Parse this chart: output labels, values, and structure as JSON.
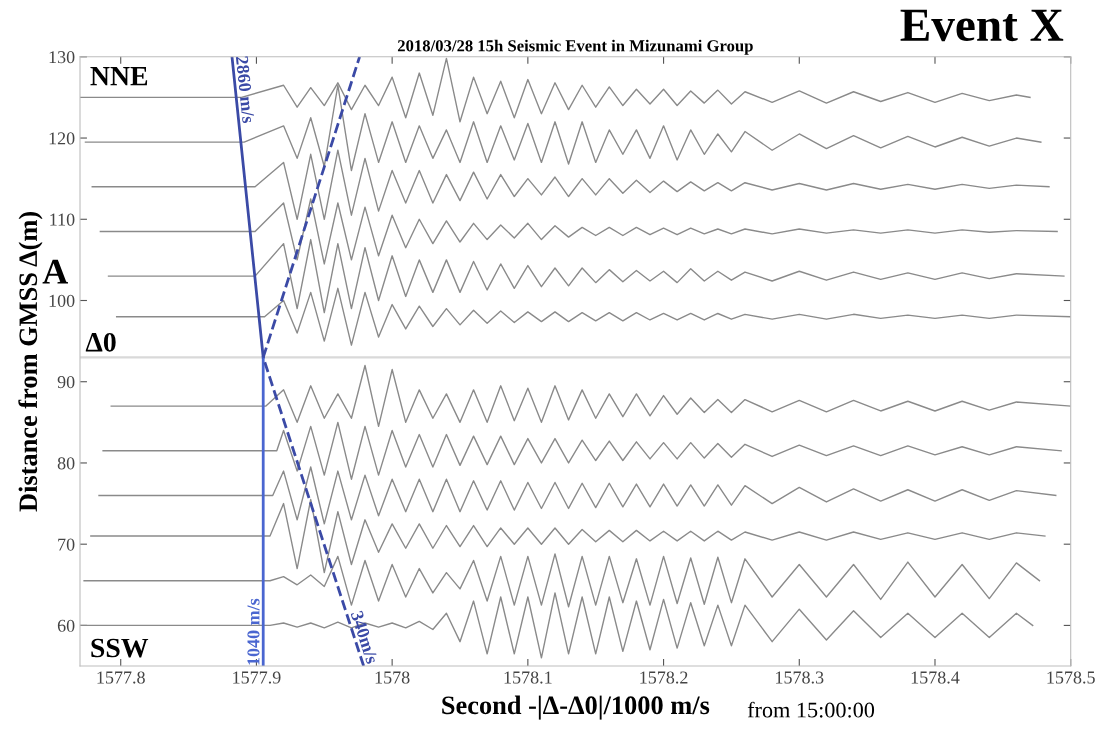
{
  "chart_data": {
    "type": "line",
    "title": "2018/03/28 15h Seismic Event in Mizunami Group",
    "xlabel": "Second -|Δ-Δ0|/1000 m/s",
    "ylabel": "Distance from GMSS Δ(m)",
    "annotations": [
      "NNE",
      "SSW",
      "A",
      "Event X",
      "from 15:00:00"
    ],
    "xlim": [
      1577.77,
      1578.5
    ],
    "xticks": [
      1577.8,
      1577.9,
      1578,
      1578.1,
      1578.2,
      1578.3,
      1578.4,
      1578.5
    ],
    "ylim": [
      55,
      130
    ],
    "yticks": [
      60,
      70,
      80,
      90,
      100,
      110,
      120,
      130
    ],
    "grid": false,
    "legend": false,
    "marker": "none",
    "ref_lines": [
      {
        "axis": "y",
        "value": 93,
        "label": "Δ0",
        "color": "#d9d9d9",
        "line_style": "solid"
      }
    ],
    "series": [
      {
        "color": "#8a8a8a",
        "line_style": "solid",
        "x": [
          1577.77,
          1577.889,
          1577.92,
          1577.93,
          1577.94,
          1577.95,
          1577.96,
          1577.97,
          1577.98,
          1577.99,
          1578.0,
          1578.01,
          1578.02,
          1578.03,
          1578.04,
          1578.05,
          1578.06,
          1578.07,
          1578.08,
          1578.09,
          1578.1,
          1578.11,
          1578.12,
          1578.13,
          1578.14,
          1578.15,
          1578.16,
          1578.17,
          1578.18,
          1578.19,
          1578.2,
          1578.21,
          1578.22,
          1578.23,
          1578.24,
          1578.25,
          1578.26,
          1578.28,
          1578.3,
          1578.32,
          1578.34,
          1578.36,
          1578.38,
          1578.4,
          1578.42,
          1578.44,
          1578.46,
          1578.47
        ],
        "values": [
          125,
          125,
          126.5,
          123.8,
          126.2,
          124,
          126.8,
          123.5,
          126.5,
          124,
          127.5,
          122.5,
          128,
          122.8,
          129.8,
          122,
          127.5,
          123,
          127,
          122.5,
          127.2,
          123,
          126.8,
          123.5,
          126.5,
          123.8,
          126.3,
          124,
          126,
          124.2,
          126,
          124,
          125.8,
          124.3,
          125.9,
          124.2,
          125.7,
          124.4,
          125.8,
          124.3,
          125.7,
          124.5,
          125.6,
          124.4,
          125.5,
          124.6,
          125.3,
          125
        ]
      },
      {
        "color": "#8a8a8a",
        "line_style": "solid",
        "x": [
          1577.774,
          1577.891,
          1577.92,
          1577.93,
          1577.94,
          1577.95,
          1577.96,
          1577.97,
          1577.98,
          1577.99,
          1578.0,
          1578.01,
          1578.02,
          1578.03,
          1578.04,
          1578.05,
          1578.06,
          1578.07,
          1578.08,
          1578.09,
          1578.1,
          1578.11,
          1578.12,
          1578.13,
          1578.14,
          1578.15,
          1578.16,
          1578.17,
          1578.18,
          1578.19,
          1578.2,
          1578.21,
          1578.22,
          1578.23,
          1578.24,
          1578.25,
          1578.26,
          1578.28,
          1578.3,
          1578.32,
          1578.34,
          1578.36,
          1578.38,
          1578.4,
          1578.42,
          1578.44,
          1578.46,
          1578.478
        ],
        "values": [
          119.5,
          119.5,
          121.5,
          117.5,
          122.5,
          116.5,
          126.5,
          116,
          123,
          117,
          122,
          117,
          121.5,
          117.5,
          121,
          117,
          122,
          117,
          121.5,
          117.3,
          121.8,
          117,
          122,
          116.8,
          122,
          117,
          121,
          118,
          121,
          117.5,
          121.5,
          117.3,
          121,
          118,
          120.5,
          118.3,
          120.8,
          118.5,
          120.5,
          118.7,
          120.3,
          118.8,
          120.2,
          118.9,
          120.1,
          119,
          120,
          119.5
        ]
      },
      {
        "color": "#8a8a8a",
        "line_style": "solid",
        "x": [
          1577.779,
          1577.899,
          1577.92,
          1577.93,
          1577.94,
          1577.95,
          1577.96,
          1577.97,
          1577.98,
          1577.99,
          1578.0,
          1578.01,
          1578.02,
          1578.03,
          1578.04,
          1578.05,
          1578.06,
          1578.07,
          1578.08,
          1578.09,
          1578.1,
          1578.11,
          1578.12,
          1578.13,
          1578.14,
          1578.15,
          1578.16,
          1578.17,
          1578.18,
          1578.19,
          1578.2,
          1578.21,
          1578.22,
          1578.23,
          1578.24,
          1578.25,
          1578.26,
          1578.28,
          1578.3,
          1578.32,
          1578.34,
          1578.36,
          1578.38,
          1578.4,
          1578.42,
          1578.44,
          1578.46,
          1578.484
        ],
        "values": [
          114,
          114,
          117,
          110,
          118,
          110,
          118.5,
          110.5,
          117.5,
          111,
          116,
          112,
          116,
          112,
          115.5,
          112.3,
          115.8,
          112.5,
          115.5,
          112.8,
          115,
          113,
          115.2,
          112.8,
          115,
          113,
          115,
          113.2,
          114.8,
          113.3,
          114.7,
          113.4,
          114.6,
          113.5,
          114.5,
          113.5,
          114.5,
          113.6,
          114.4,
          113.6,
          114.4,
          113.7,
          114.3,
          113.7,
          114.3,
          113.8,
          114.2,
          114
        ]
      },
      {
        "color": "#8a8a8a",
        "line_style": "solid",
        "x": [
          1577.785,
          1577.899,
          1577.92,
          1577.93,
          1577.94,
          1577.95,
          1577.96,
          1577.97,
          1577.98,
          1577.99,
          1578.0,
          1578.01,
          1578.02,
          1578.03,
          1578.04,
          1578.05,
          1578.06,
          1578.07,
          1578.08,
          1578.09,
          1578.1,
          1578.11,
          1578.12,
          1578.13,
          1578.14,
          1578.15,
          1578.16,
          1578.17,
          1578.18,
          1578.19,
          1578.2,
          1578.21,
          1578.22,
          1578.23,
          1578.24,
          1578.25,
          1578.26,
          1578.28,
          1578.3,
          1578.32,
          1578.34,
          1578.36,
          1578.38,
          1578.4,
          1578.42,
          1578.44,
          1578.46,
          1578.49
        ],
        "values": [
          108.5,
          108.5,
          112,
          105,
          112.5,
          104.5,
          112,
          105,
          111.5,
          105.5,
          110.5,
          106.5,
          110,
          107,
          109.8,
          107.2,
          109.5,
          107.5,
          109.3,
          107.7,
          109.5,
          107.5,
          109.2,
          107.8,
          109,
          108,
          109,
          108,
          109,
          108.1,
          108.9,
          108.1,
          108.9,
          108.2,
          108.8,
          108.2,
          108.8,
          108.2,
          108.8,
          108.3,
          108.7,
          108.3,
          108.7,
          108.3,
          108.7,
          108.4,
          108.6,
          108.5
        ]
      },
      {
        "color": "#8a8a8a",
        "line_style": "solid",
        "x": [
          1577.791,
          1577.899,
          1577.92,
          1577.93,
          1577.94,
          1577.95,
          1577.96,
          1577.97,
          1577.98,
          1577.99,
          1578.0,
          1578.01,
          1578.02,
          1578.03,
          1578.04,
          1578.05,
          1578.06,
          1578.07,
          1578.08,
          1578.09,
          1578.1,
          1578.11,
          1578.12,
          1578.13,
          1578.14,
          1578.15,
          1578.16,
          1578.17,
          1578.18,
          1578.19,
          1578.2,
          1578.21,
          1578.22,
          1578.23,
          1578.24,
          1578.25,
          1578.26,
          1578.28,
          1578.3,
          1578.32,
          1578.34,
          1578.36,
          1578.38,
          1578.4,
          1578.42,
          1578.44,
          1578.46,
          1578.495
        ],
        "values": [
          103,
          103,
          107,
          99,
          107.5,
          98.5,
          107,
          99,
          106.5,
          100,
          105.5,
          100.5,
          105,
          101,
          105,
          101,
          104.8,
          101.3,
          104.5,
          101.5,
          104.3,
          101.7,
          104,
          101.8,
          104,
          102.2,
          103.8,
          102.3,
          103.7,
          102.4,
          103.6,
          102.2,
          103.9,
          102.4,
          103.6,
          102.5,
          103.5,
          102.4,
          103.6,
          102.5,
          103.5,
          102.6,
          103.4,
          102.6,
          103.4,
          102.7,
          103.3,
          103
        ]
      },
      {
        "color": "#8a8a8a",
        "line_style": "solid",
        "x": [
          1577.797,
          1577.906,
          1577.92,
          1577.93,
          1577.94,
          1577.95,
          1577.96,
          1577.97,
          1577.98,
          1577.99,
          1578.0,
          1578.01,
          1578.02,
          1578.03,
          1578.04,
          1578.05,
          1578.06,
          1578.07,
          1578.08,
          1578.09,
          1578.1,
          1578.11,
          1578.12,
          1578.13,
          1578.14,
          1578.15,
          1578.16,
          1578.17,
          1578.18,
          1578.19,
          1578.2,
          1578.21,
          1578.22,
          1578.23,
          1578.24,
          1578.25,
          1578.26,
          1578.28,
          1578.3,
          1578.32,
          1578.34,
          1578.36,
          1578.38,
          1578.4,
          1578.42,
          1578.44,
          1578.46,
          1578.5
        ],
        "values": [
          98,
          98,
          100,
          96,
          101,
          95,
          101.5,
          94.5,
          101,
          95.5,
          99.5,
          96.5,
          99.3,
          96.8,
          99,
          97,
          98.8,
          97.2,
          98.7,
          97.3,
          98.6,
          97.4,
          98.6,
          97.4,
          98.5,
          97.5,
          98.5,
          97.5,
          98.5,
          97.6,
          98.4,
          97.6,
          98.4,
          97.6,
          98.4,
          97.7,
          98.3,
          97.7,
          98.3,
          97.7,
          98.3,
          97.8,
          98.2,
          97.8,
          98.2,
          97.8,
          98.2,
          98
        ]
      },
      {
        "color": "#8a8a8a",
        "line_style": "solid",
        "x": [
          1577.793,
          1577.907,
          1577.92,
          1577.93,
          1577.94,
          1577.95,
          1577.96,
          1577.97,
          1577.98,
          1577.99,
          1578.0,
          1578.01,
          1578.02,
          1578.03,
          1578.04,
          1578.05,
          1578.06,
          1578.07,
          1578.08,
          1578.09,
          1578.1,
          1578.11,
          1578.12,
          1578.13,
          1578.14,
          1578.15,
          1578.16,
          1578.17,
          1578.18,
          1578.19,
          1578.2,
          1578.21,
          1578.22,
          1578.23,
          1578.24,
          1578.25,
          1578.26,
          1578.28,
          1578.3,
          1578.32,
          1578.34,
          1578.36,
          1578.38,
          1578.4,
          1578.42,
          1578.44,
          1578.46,
          1578.5
        ],
        "values": [
          87,
          87,
          89,
          85,
          89.5,
          85.5,
          88.5,
          85.5,
          92,
          84.5,
          91.5,
          85,
          89,
          85.5,
          88.5,
          85,
          89,
          85,
          89.5,
          85.2,
          89.2,
          85,
          89.5,
          85.3,
          89,
          85.5,
          88.5,
          85.7,
          88.5,
          85.8,
          88.3,
          86,
          88,
          86.2,
          87.8,
          86.2,
          87.8,
          86.3,
          87.7,
          86.3,
          87.7,
          86.4,
          87.6,
          86.4,
          87.6,
          86.5,
          87.5,
          87
        ]
      },
      {
        "color": "#8a8a8a",
        "line_style": "solid",
        "x": [
          1577.787,
          1577.915,
          1577.92,
          1577.93,
          1577.94,
          1577.95,
          1577.96,
          1577.97,
          1577.98,
          1577.99,
          1578.0,
          1578.01,
          1578.02,
          1578.03,
          1578.04,
          1578.05,
          1578.06,
          1578.07,
          1578.08,
          1578.09,
          1578.1,
          1578.11,
          1578.12,
          1578.13,
          1578.14,
          1578.15,
          1578.16,
          1578.17,
          1578.18,
          1578.19,
          1578.2,
          1578.21,
          1578.22,
          1578.23,
          1578.24,
          1578.25,
          1578.26,
          1578.28,
          1578.3,
          1578.32,
          1578.34,
          1578.36,
          1578.38,
          1578.4,
          1578.42,
          1578.44,
          1578.46,
          1578.493
        ],
        "values": [
          81.5,
          81.5,
          84,
          79,
          84.5,
          78.5,
          85,
          78,
          84.5,
          78.5,
          84,
          79.5,
          83.5,
          79.5,
          83.5,
          79.7,
          83.3,
          79.8,
          83.3,
          79.8,
          83,
          80,
          83,
          80,
          82.8,
          80.3,
          82.7,
          80.3,
          82.6,
          80.5,
          82.5,
          80.5,
          82.5,
          80.6,
          82.4,
          80.7,
          82.3,
          80.8,
          82.2,
          80.9,
          82.1,
          80.9,
          82.1,
          81,
          82,
          81,
          82,
          81.5
        ]
      },
      {
        "color": "#8a8a8a",
        "line_style": "solid",
        "x": [
          1577.784,
          1577.912,
          1577.92,
          1577.93,
          1577.94,
          1577.95,
          1577.96,
          1577.97,
          1577.98,
          1577.99,
          1578.0,
          1578.01,
          1578.02,
          1578.03,
          1578.04,
          1578.05,
          1578.06,
          1578.07,
          1578.08,
          1578.09,
          1578.1,
          1578.11,
          1578.12,
          1578.13,
          1578.14,
          1578.15,
          1578.16,
          1578.17,
          1578.18,
          1578.19,
          1578.2,
          1578.21,
          1578.22,
          1578.23,
          1578.24,
          1578.25,
          1578.26,
          1578.28,
          1578.3,
          1578.32,
          1578.34,
          1578.36,
          1578.38,
          1578.4,
          1578.42,
          1578.44,
          1578.46,
          1578.489
        ],
        "values": [
          76,
          76,
          79,
          73,
          79.5,
          72.5,
          79,
          73,
          78.5,
          73.5,
          78,
          74,
          78,
          74,
          78,
          74,
          77.8,
          74.2,
          77.8,
          74.2,
          77.6,
          74.4,
          77.6,
          74.4,
          77.5,
          74.5,
          77.5,
          74.6,
          77.4,
          74.6,
          77.4,
          74.7,
          77.3,
          74.7,
          77.3,
          74.8,
          77.2,
          75,
          77,
          75.2,
          76.8,
          75.3,
          76.7,
          75.3,
          76.7,
          75.4,
          76.6,
          76
        ]
      },
      {
        "color": "#8a8a8a",
        "line_style": "solid",
        "x": [
          1577.778,
          1577.91,
          1577.92,
          1577.93,
          1577.94,
          1577.95,
          1577.96,
          1577.97,
          1577.98,
          1577.99,
          1578.0,
          1578.01,
          1578.02,
          1578.03,
          1578.04,
          1578.05,
          1578.06,
          1578.07,
          1578.08,
          1578.09,
          1578.1,
          1578.11,
          1578.12,
          1578.13,
          1578.14,
          1578.15,
          1578.16,
          1578.17,
          1578.18,
          1578.19,
          1578.2,
          1578.21,
          1578.22,
          1578.23,
          1578.24,
          1578.25,
          1578.26,
          1578.28,
          1578.3,
          1578.32,
          1578.34,
          1578.36,
          1578.38,
          1578.4,
          1578.42,
          1578.44,
          1578.46,
          1578.481
        ],
        "values": [
          71,
          71,
          75,
          67,
          75.5,
          66.5,
          74,
          67.5,
          73,
          69,
          72.5,
          69.5,
          72.5,
          69.5,
          72.3,
          69.7,
          72.3,
          69.7,
          72,
          70,
          72,
          70,
          72,
          70,
          71.8,
          70.3,
          71.7,
          70.3,
          71.7,
          70.4,
          71.6,
          70.4,
          71.6,
          70.4,
          71.6,
          70.5,
          71.5,
          70.5,
          71.5,
          70.5,
          71.5,
          70.6,
          71.4,
          70.6,
          71.4,
          70.6,
          71.4,
          71
        ]
      },
      {
        "color": "#8a8a8a",
        "line_style": "solid",
        "x": [
          1577.773,
          1577.91,
          1577.92,
          1577.93,
          1577.94,
          1577.95,
          1577.96,
          1577.97,
          1577.98,
          1577.99,
          1578.0,
          1578.01,
          1578.02,
          1578.03,
          1578.04,
          1578.05,
          1578.06,
          1578.07,
          1578.08,
          1578.09,
          1578.1,
          1578.11,
          1578.12,
          1578.13,
          1578.14,
          1578.15,
          1578.16,
          1578.17,
          1578.18,
          1578.19,
          1578.2,
          1578.21,
          1578.22,
          1578.23,
          1578.24,
          1578.25,
          1578.26,
          1578.28,
          1578.3,
          1578.32,
          1578.34,
          1578.36,
          1578.38,
          1578.4,
          1578.42,
          1578.44,
          1578.46,
          1578.477
        ],
        "values": [
          65.5,
          65.5,
          66,
          65,
          66.2,
          64.8,
          68.5,
          62.5,
          68,
          63,
          67.5,
          63.5,
          67,
          64,
          66.5,
          64.5,
          68,
          63,
          68.5,
          62.5,
          68.5,
          62.5,
          68.8,
          62.3,
          68.5,
          62.5,
          68.5,
          62.8,
          68.2,
          62.5,
          68.5,
          62.7,
          68.3,
          62.6,
          68.4,
          62.8,
          68.2,
          63.5,
          67.5,
          63.5,
          67.5,
          63.2,
          67.8,
          63.5,
          67.5,
          63.3,
          67.7,
          65.5
        ]
      },
      {
        "color": "#8a8a8a",
        "line_style": "solid",
        "x": [
          1577.77,
          1577.91,
          1577.92,
          1577.93,
          1577.94,
          1577.95,
          1577.96,
          1577.97,
          1577.98,
          1577.99,
          1578.0,
          1578.01,
          1578.02,
          1578.03,
          1578.04,
          1578.05,
          1578.06,
          1578.07,
          1578.08,
          1578.09,
          1578.1,
          1578.11,
          1578.12,
          1578.13,
          1578.14,
          1578.15,
          1578.16,
          1578.17,
          1578.18,
          1578.19,
          1578.2,
          1578.21,
          1578.22,
          1578.23,
          1578.24,
          1578.25,
          1578.26,
          1578.28,
          1578.3,
          1578.32,
          1578.34,
          1578.36,
          1578.38,
          1578.4,
          1578.42,
          1578.44,
          1578.46,
          1578.472
        ],
        "values": [
          60,
          60,
          60.3,
          59.8,
          60.3,
          59.7,
          60.4,
          59.7,
          60.3,
          59.8,
          60.3,
          59.7,
          60.5,
          59.5,
          61.5,
          58,
          63,
          56.5,
          63.5,
          56.5,
          63.5,
          56,
          64,
          56.5,
          63.5,
          56.5,
          63.5,
          56.8,
          63,
          57,
          63.2,
          57.2,
          62.8,
          57.5,
          62.5,
          57.5,
          62.5,
          58,
          62,
          58.2,
          61.8,
          58.5,
          61.5,
          58.5,
          61.5,
          58.5,
          61.5,
          60
        ]
      },
      {
        "name": "2860 m/s",
        "color": "#3b4aa6",
        "line_style": "solid",
        "x": [
          1577.882,
          1577.905
        ],
        "values": [
          130,
          93
        ]
      },
      {
        "name": "1040 m/s",
        "color": "#4a66d0",
        "line_style": "solid",
        "x": [
          1577.905,
          1577.905
        ],
        "values": [
          55,
          93
        ]
      },
      {
        "color": "#3b4aa6",
        "line_style": "dashed",
        "x": [
          1577.905,
          1577.976
        ],
        "values": [
          93,
          130
        ]
      },
      {
        "name": "340m/s",
        "color": "#3b4aa6",
        "line_style": "dashed",
        "x": [
          1577.979,
          1577.905
        ],
        "values": [
          55,
          93
        ]
      }
    ]
  }
}
